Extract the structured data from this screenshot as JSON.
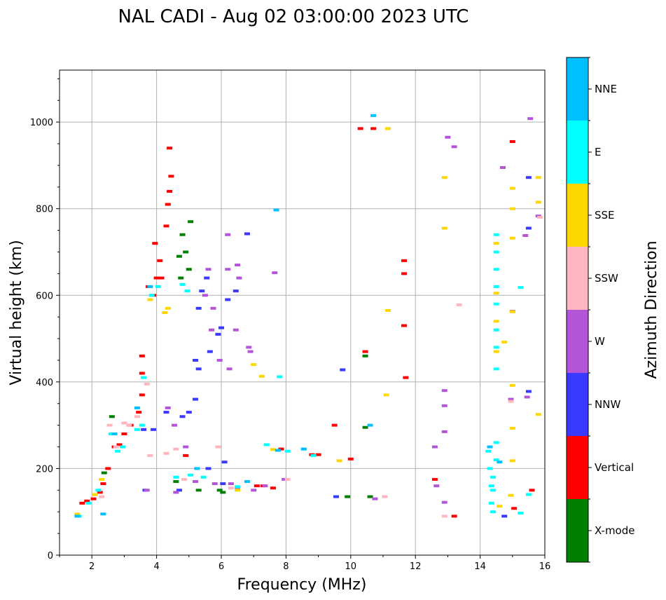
{
  "chart_data": {
    "type": "scatter",
    "title": "NAL CADI - Aug 02 03:00:00 2023 UTC",
    "xlabel": "Frequency (MHz)",
    "ylabel": "Virtual height (km)",
    "xlim": [
      1,
      16
    ],
    "ylim": [
      0,
      1120
    ],
    "xticks": [
      2,
      4,
      6,
      8,
      10,
      12,
      14,
      16
    ],
    "yticks": [
      0,
      200,
      400,
      600,
      800,
      1000
    ],
    "grid": true,
    "colorbar": {
      "title": "Azimuth Direction",
      "categories": [
        {
          "name": "X-mode",
          "color": "#008000"
        },
        {
          "name": "Vertical",
          "color": "#ff0000"
        },
        {
          "name": "NNW",
          "color": "#3a3aff"
        },
        {
          "name": "W",
          "color": "#b455d8"
        },
        {
          "name": "SSW",
          "color": "#ffb6c1"
        },
        {
          "name": "SSE",
          "color": "#ffd700"
        },
        {
          "name": "E",
          "color": "#00ffff"
        },
        {
          "name": "NNE",
          "color": "#00bfff"
        }
      ]
    },
    "series": [
      {
        "name": "X-mode",
        "points": [
          [
            2.38,
            190
          ],
          [
            2.62,
            320
          ],
          [
            4.7,
            690
          ],
          [
            4.8,
            740
          ],
          [
            4.9,
            700
          ],
          [
            5.05,
            770
          ],
          [
            5.0,
            660
          ],
          [
            4.75,
            640
          ],
          [
            4.6,
            170
          ],
          [
            5.3,
            150
          ],
          [
            5.95,
            150
          ],
          [
            6.05,
            145
          ],
          [
            9.9,
            135
          ],
          [
            10.6,
            135
          ],
          [
            10.45,
            460
          ],
          [
            10.45,
            295
          ]
        ]
      },
      {
        "name": "Vertical",
        "points": [
          [
            1.7,
            120
          ],
          [
            1.85,
            125
          ],
          [
            2.05,
            130
          ],
          [
            2.25,
            145
          ],
          [
            2.35,
            165
          ],
          [
            2.5,
            200
          ],
          [
            2.7,
            250
          ],
          [
            2.85,
            255
          ],
          [
            3.0,
            280
          ],
          [
            3.2,
            300
          ],
          [
            3.45,
            330
          ],
          [
            3.55,
            370
          ],
          [
            3.55,
            420
          ],
          [
            3.55,
            460
          ],
          [
            3.9,
            600
          ],
          [
            4.0,
            640
          ],
          [
            4.1,
            680
          ],
          [
            3.95,
            720
          ],
          [
            4.35,
            810
          ],
          [
            4.4,
            840
          ],
          [
            4.45,
            875
          ],
          [
            4.4,
            940
          ],
          [
            4.3,
            760
          ],
          [
            4.15,
            640
          ],
          [
            3.75,
            620
          ],
          [
            4.9,
            230
          ],
          [
            7.1,
            160
          ],
          [
            7.3,
            160
          ],
          [
            7.6,
            155
          ],
          [
            7.85,
            245
          ],
          [
            8.8,
            232
          ],
          [
            9.0,
            232
          ],
          [
            9.5,
            300
          ],
          [
            10.0,
            222
          ],
          [
            10.3,
            985
          ],
          [
            10.45,
            470
          ],
          [
            10.7,
            985
          ],
          [
            11.65,
            680
          ],
          [
            11.65,
            650
          ],
          [
            11.65,
            530
          ],
          [
            11.7,
            410
          ],
          [
            12.6,
            175
          ],
          [
            13.2,
            90
          ],
          [
            15.0,
            955
          ],
          [
            15.05,
            108
          ],
          [
            15.6,
            150
          ]
        ]
      },
      {
        "name": "NNW",
        "points": [
          [
            3.6,
            290
          ],
          [
            3.9,
            290
          ],
          [
            4.3,
            330
          ],
          [
            4.8,
            320
          ],
          [
            5.0,
            330
          ],
          [
            5.2,
            360
          ],
          [
            5.4,
            610
          ],
          [
            5.55,
            640
          ],
          [
            5.3,
            570
          ],
          [
            5.2,
            450
          ],
          [
            5.3,
            430
          ],
          [
            5.65,
            470
          ],
          [
            5.9,
            510
          ],
          [
            6.0,
            525
          ],
          [
            6.2,
            590
          ],
          [
            6.45,
            610
          ],
          [
            6.8,
            742
          ],
          [
            5.6,
            200
          ],
          [
            6.1,
            215
          ],
          [
            6.05,
            165
          ],
          [
            3.65,
            150
          ],
          [
            4.7,
            150
          ],
          [
            9.55,
            135
          ],
          [
            9.75,
            428
          ],
          [
            14.75,
            90
          ],
          [
            15.5,
            755
          ],
          [
            15.5,
            378
          ],
          [
            15.5,
            872
          ]
        ]
      },
      {
        "name": "W",
        "points": [
          [
            3.7,
            150
          ],
          [
            4.6,
            145
          ],
          [
            5.2,
            170
          ],
          [
            5.8,
            165
          ],
          [
            6.3,
            165
          ],
          [
            6.5,
            155
          ],
          [
            7.0,
            150
          ],
          [
            7.35,
            160
          ],
          [
            7.95,
            175
          ],
          [
            5.5,
            600
          ],
          [
            5.6,
            660
          ],
          [
            5.75,
            570
          ],
          [
            5.7,
            520
          ],
          [
            5.95,
            450
          ],
          [
            6.2,
            660
          ],
          [
            6.5,
            670
          ],
          [
            6.55,
            640
          ],
          [
            6.2,
            740
          ],
          [
            6.45,
            520
          ],
          [
            6.85,
            480
          ],
          [
            6.9,
            470
          ],
          [
            6.25,
            430
          ],
          [
            4.35,
            340
          ],
          [
            4.55,
            300
          ],
          [
            4.9,
            250
          ],
          [
            10.75,
            130
          ],
          [
            12.9,
            345
          ],
          [
            12.9,
            380
          ],
          [
            12.9,
            285
          ],
          [
            13.0,
            965
          ],
          [
            13.2,
            943
          ],
          [
            12.65,
            160
          ],
          [
            12.6,
            250
          ],
          [
            12.9,
            122
          ],
          [
            14.95,
            360
          ],
          [
            15.0,
            563
          ],
          [
            15.4,
            738
          ],
          [
            15.45,
            365
          ],
          [
            15.55,
            1008
          ],
          [
            15.8,
            783
          ],
          [
            14.7,
            895
          ],
          [
            7.65,
            652
          ]
        ]
      },
      {
        "name": "SSW",
        "points": [
          [
            2.3,
            135
          ],
          [
            2.55,
            300
          ],
          [
            2.75,
            250
          ],
          [
            3.0,
            305
          ],
          [
            3.15,
            300
          ],
          [
            3.4,
            320
          ],
          [
            3.7,
            395
          ],
          [
            3.8,
            230
          ],
          [
            4.3,
            235
          ],
          [
            4.6,
            245
          ],
          [
            4.85,
            175
          ],
          [
            5.9,
            250
          ],
          [
            6.3,
            155
          ],
          [
            8.05,
            175
          ],
          [
            11.05,
            135
          ],
          [
            12.9,
            90
          ],
          [
            13.35,
            578
          ],
          [
            14.95,
            355
          ],
          [
            15.85,
            780
          ]
        ]
      },
      {
        "name": "SSE",
        "points": [
          [
            1.55,
            95
          ],
          [
            2.1,
            140
          ],
          [
            2.3,
            175
          ],
          [
            3.8,
            590
          ],
          [
            4.25,
            560
          ],
          [
            4.35,
            570
          ],
          [
            6.5,
            150
          ],
          [
            7.0,
            440
          ],
          [
            7.25,
            413
          ],
          [
            7.6,
            244
          ],
          [
            9.65,
            218
          ],
          [
            11.15,
            565
          ],
          [
            11.1,
            370
          ],
          [
            11.15,
            985
          ],
          [
            12.9,
            872
          ],
          [
            12.9,
            755
          ],
          [
            14.5,
            540
          ],
          [
            14.5,
            720
          ],
          [
            14.5,
            605
          ],
          [
            14.5,
            470
          ],
          [
            14.6,
            113
          ],
          [
            14.75,
            492
          ],
          [
            14.95,
            138
          ],
          [
            15.0,
            847
          ],
          [
            15.0,
            800
          ],
          [
            15.0,
            732
          ],
          [
            15.0,
            293
          ],
          [
            15.0,
            218
          ],
          [
            15.0,
            562
          ],
          [
            15.0,
            392
          ],
          [
            15.8,
            325
          ],
          [
            15.8,
            815
          ],
          [
            15.8,
            872
          ]
        ]
      },
      {
        "name": "E",
        "points": [
          [
            1.6,
            90
          ],
          [
            1.9,
            120
          ],
          [
            2.2,
            150
          ],
          [
            2.6,
            280
          ],
          [
            2.8,
            240
          ],
          [
            2.95,
            250
          ],
          [
            3.4,
            290
          ],
          [
            3.6,
            410
          ],
          [
            3.55,
            300
          ],
          [
            3.85,
            600
          ],
          [
            4.05,
            620
          ],
          [
            4.95,
            610
          ],
          [
            4.8,
            625
          ],
          [
            4.6,
            180
          ],
          [
            5.05,
            185
          ],
          [
            5.45,
            180
          ],
          [
            6.5,
            158
          ],
          [
            7.4,
            255
          ],
          [
            7.8,
            412
          ],
          [
            8.05,
            240
          ],
          [
            8.55,
            245
          ],
          [
            8.85,
            230
          ],
          [
            14.25,
            240
          ],
          [
            14.3,
            200
          ],
          [
            14.35,
            160
          ],
          [
            14.35,
            120
          ],
          [
            14.4,
            100
          ],
          [
            14.4,
            150
          ],
          [
            14.4,
            180
          ],
          [
            14.5,
            220
          ],
          [
            14.5,
            260
          ],
          [
            14.5,
            430
          ],
          [
            14.5,
            480
          ],
          [
            14.5,
            520
          ],
          [
            14.5,
            580
          ],
          [
            14.5,
            620
          ],
          [
            14.5,
            660
          ],
          [
            14.5,
            700
          ],
          [
            14.5,
            740
          ],
          [
            15.25,
            618
          ],
          [
            15.25,
            97
          ],
          [
            15.5,
            140
          ]
        ]
      },
      {
        "name": "NNE",
        "points": [
          [
            1.55,
            90
          ],
          [
            2.35,
            95
          ],
          [
            2.7,
            280
          ],
          [
            3.4,
            340
          ],
          [
            3.8,
            620
          ],
          [
            5.25,
            200
          ],
          [
            6.8,
            170
          ],
          [
            7.75,
            242
          ],
          [
            8.55,
            245
          ],
          [
            10.6,
            300
          ],
          [
            14.3,
            250
          ],
          [
            14.6,
            215
          ],
          [
            7.7,
            797
          ],
          [
            10.7,
            1015
          ]
        ]
      }
    ]
  }
}
